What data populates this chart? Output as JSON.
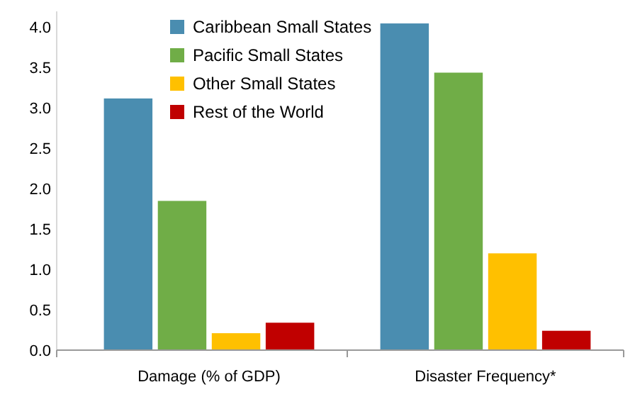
{
  "chart_data": {
    "type": "bar",
    "categories": [
      "Damage (% of GDP)",
      "Disaster Frequency*"
    ],
    "series": [
      {
        "name": "Caribbean Small States",
        "color": "#4a8db0",
        "values": [
          3.12,
          4.05
        ]
      },
      {
        "name": "Pacific Small States",
        "color": "#70ad47",
        "values": [
          1.85,
          3.44
        ]
      },
      {
        "name": "Other Small States",
        "color": "#ffc000",
        "values": [
          0.21,
          1.2
        ]
      },
      {
        "name": "Rest of the World",
        "color": "#c00000",
        "values": [
          0.34,
          0.24
        ]
      }
    ],
    "ylim": [
      0,
      4.2
    ],
    "yticks": [
      {
        "value": 0,
        "label": "0.0"
      },
      0.5,
      {
        "value": 1,
        "label": "1.0"
      },
      1.5,
      {
        "value": 2,
        "label": "2.0"
      },
      2.5,
      {
        "value": 3,
        "label": "3.0"
      },
      3.5,
      {
        "value": 4,
        "label": "4.0"
      }
    ],
    "legend": "top",
    "grid": false
  }
}
